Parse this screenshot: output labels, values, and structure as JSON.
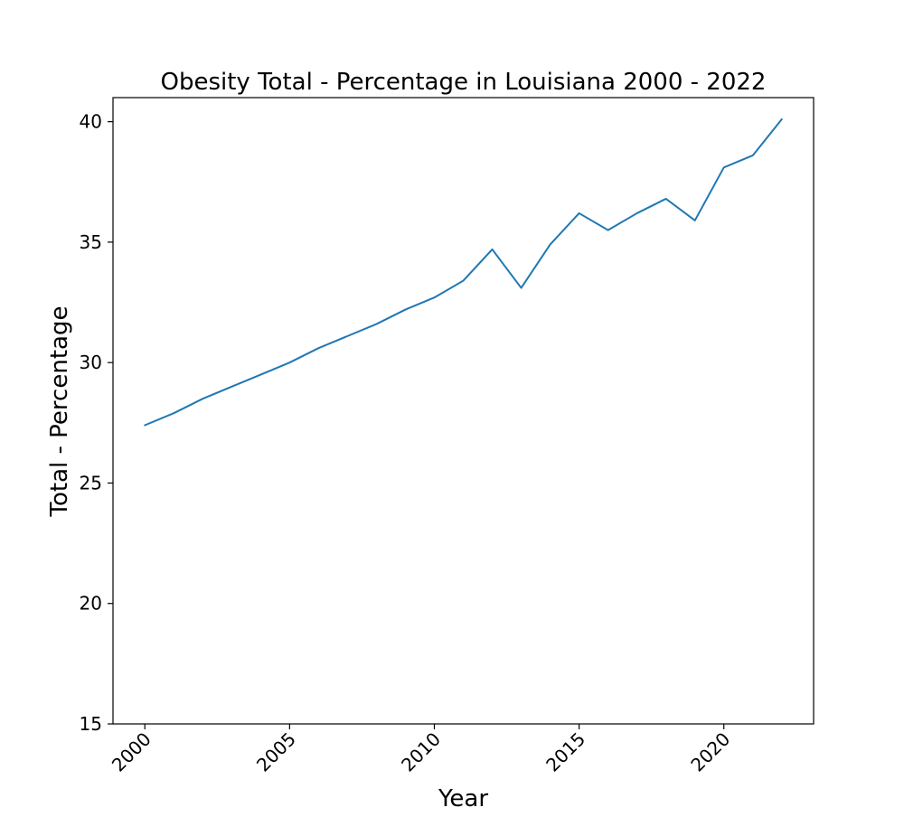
{
  "chart_data": {
    "type": "line",
    "title": "Obesity Total - Percentage in Louisiana 2000 - 2022",
    "xlabel": "Year",
    "ylabel": "Total - Percentage",
    "x": [
      2000,
      2001,
      2002,
      2003,
      2004,
      2005,
      2006,
      2007,
      2008,
      2009,
      2010,
      2011,
      2012,
      2013,
      2014,
      2015,
      2016,
      2017,
      2018,
      2019,
      2020,
      2021,
      2022
    ],
    "series": [
      {
        "values": [
          27.4,
          27.9,
          28.5,
          29.0,
          29.5,
          30.0,
          30.6,
          31.1,
          31.6,
          32.2,
          32.7,
          33.4,
          34.7,
          33.1,
          34.9,
          36.2,
          35.5,
          36.2,
          36.8,
          35.9,
          38.1,
          38.6,
          40.1
        ],
        "color": "#1f77b4"
      }
    ],
    "xlim": [
      1998.9,
      2023.1
    ],
    "ylim": [
      15,
      41
    ],
    "xticks": [
      2000,
      2005,
      2010,
      2015,
      2020
    ],
    "xtick_labels": [
      "2000",
      "2005",
      "2010",
      "2015",
      "2020"
    ],
    "yticks": [
      15,
      20,
      25,
      30,
      35,
      40
    ],
    "ytick_labels": [
      "15",
      "20",
      "25",
      "30",
      "35",
      "40"
    ],
    "grid": false,
    "legend": "none"
  }
}
